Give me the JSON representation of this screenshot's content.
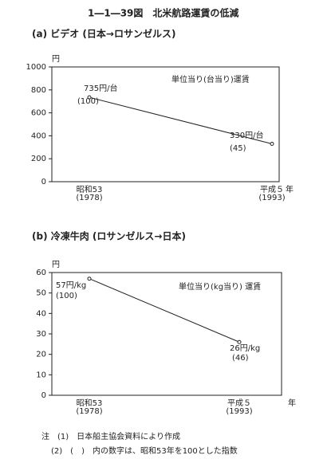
{
  "title": "1―1―39図　北米航路運賃の低減",
  "chart_data": [
    {
      "type": "line",
      "title": "(a) ビデオ (日本→ロサンゼルス)",
      "y_unit": "円",
      "x_unit": "年",
      "annotation": "単位当り(台当り)運賃",
      "categories": [
        "昭和53",
        "平成５"
      ],
      "category_years": [
        "(1978)",
        "(1993)"
      ],
      "values": [
        735,
        330
      ],
      "value_labels": [
        "735円/台",
        "330円/台"
      ],
      "index_labels": [
        "(100)",
        "(45)"
      ],
      "color": "#222222",
      "ylim": [
        0,
        1000
      ],
      "yticks": [
        0,
        200,
        400,
        600,
        800,
        1000
      ]
    },
    {
      "type": "line",
      "title": "(b) 冷凍牛肉 (ロサンゼルス→日本)",
      "y_unit": "円",
      "x_unit": "年",
      "annotation": "単位当り(kg当り) 運賃",
      "categories": [
        "昭和53",
        "平成５"
      ],
      "category_years": [
        "(1978)",
        "(1993)"
      ],
      "values": [
        57,
        26
      ],
      "value_labels": [
        "57円/kg",
        "26円/kg"
      ],
      "index_labels": [
        "(100)",
        "(46)"
      ],
      "color": "#222222",
      "ylim": [
        0,
        60
      ],
      "yticks": [
        0,
        10,
        20,
        30,
        40,
        50,
        60
      ]
    }
  ],
  "notes": [
    "注　(1)　日本船主協会資料により作成",
    "(2)　(　)　内の数字は、昭和53年を100とした指数"
  ]
}
